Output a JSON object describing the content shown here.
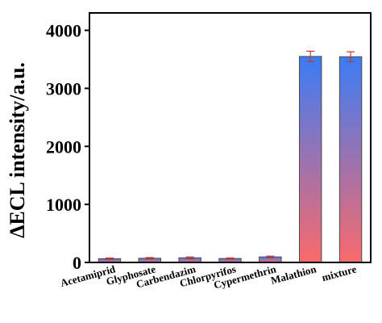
{
  "chart_data": {
    "type": "bar",
    "categories": [
      "Acetamiprid",
      "Glyphosate",
      "Carbendazim",
      "Chlorpyrifos",
      "Cypermethrin",
      "Malathion",
      "mixture"
    ],
    "values": [
      65,
      72,
      80,
      68,
      95,
      3550,
      3545
    ],
    "errors": [
      12,
      12,
      14,
      10,
      14,
      90,
      85
    ],
    "ylabel": "ΔECL intensity/a.u.",
    "xlabel": "",
    "ylim": [
      0,
      4300
    ],
    "yticks": [
      0,
      1000,
      2000,
      3000,
      4000
    ],
    "grid": false,
    "bar_gradient": {
      "top": "#3b7cf5",
      "bottom": "#f96a6a"
    },
    "bar_edge_color": "#4a4a4a",
    "error_bar_color": "#c0392b"
  }
}
